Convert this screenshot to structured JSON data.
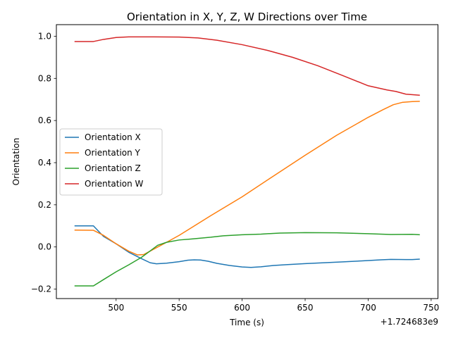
{
  "chart_data": {
    "type": "line",
    "title": "Orientation in X, Y, Z, W Directions over Time",
    "xlabel": "Time (s)",
    "ylabel": "Orientation",
    "x_offset_label": "+1.724683e9",
    "xlim": [
      452.6,
      755.4
    ],
    "ylim": [
      -0.245,
      1.055
    ],
    "xticks": [
      500,
      550,
      600,
      650,
      700,
      750
    ],
    "xtick_labels": [
      "500",
      "550",
      "600",
      "650",
      "700",
      "750"
    ],
    "yticks": [
      -0.2,
      0.0,
      0.2,
      0.4,
      0.6,
      0.8,
      1.0
    ],
    "ytick_labels": [
      "−0.2",
      "0.0",
      "0.2",
      "0.4",
      "0.6",
      "0.8",
      "1.0"
    ],
    "grid": false,
    "legend_position": "center-left",
    "series": [
      {
        "name": "Orientation X",
        "color": "#1f77b4",
        "points": [
          [
            467,
            0.1
          ],
          [
            482,
            0.1
          ],
          [
            490,
            0.05
          ],
          [
            500,
            0.015
          ],
          [
            510,
            -0.025
          ],
          [
            520,
            -0.055
          ],
          [
            527,
            -0.075
          ],
          [
            532,
            -0.08
          ],
          [
            540,
            -0.077
          ],
          [
            550,
            -0.07
          ],
          [
            557,
            -0.063
          ],
          [
            562,
            -0.061
          ],
          [
            567,
            -0.062
          ],
          [
            573,
            -0.068
          ],
          [
            580,
            -0.078
          ],
          [
            590,
            -0.088
          ],
          [
            600,
            -0.095
          ],
          [
            607,
            -0.097
          ],
          [
            615,
            -0.094
          ],
          [
            625,
            -0.088
          ],
          [
            635,
            -0.084
          ],
          [
            650,
            -0.079
          ],
          [
            665,
            -0.075
          ],
          [
            680,
            -0.071
          ],
          [
            695,
            -0.066
          ],
          [
            710,
            -0.061
          ],
          [
            718,
            -0.059
          ],
          [
            730,
            -0.06
          ],
          [
            735,
            -0.06
          ],
          [
            741,
            -0.058
          ]
        ]
      },
      {
        "name": "Orientation Y",
        "color": "#ff7f0e",
        "points": [
          [
            467,
            0.08
          ],
          [
            482,
            0.079
          ],
          [
            490,
            0.055
          ],
          [
            500,
            0.015
          ],
          [
            510,
            -0.02
          ],
          [
            517,
            -0.038
          ],
          [
            522,
            -0.036
          ],
          [
            530,
            -0.01
          ],
          [
            540,
            0.022
          ],
          [
            550,
            0.055
          ],
          [
            560,
            0.092
          ],
          [
            575,
            0.148
          ],
          [
            600,
            0.238
          ],
          [
            625,
            0.337
          ],
          [
            650,
            0.435
          ],
          [
            675,
            0.53
          ],
          [
            700,
            0.615
          ],
          [
            712,
            0.652
          ],
          [
            720,
            0.675
          ],
          [
            727,
            0.686
          ],
          [
            735,
            0.69
          ],
          [
            741,
            0.691
          ]
        ]
      },
      {
        "name": "Orientation Z",
        "color": "#2ca02c",
        "points": [
          [
            467,
            -0.185
          ],
          [
            482,
            -0.185
          ],
          [
            490,
            -0.155
          ],
          [
            500,
            -0.118
          ],
          [
            510,
            -0.085
          ],
          [
            520,
            -0.05
          ],
          [
            525,
            -0.028
          ],
          [
            533,
            0.008
          ],
          [
            540,
            0.022
          ],
          [
            550,
            0.033
          ],
          [
            560,
            0.038
          ],
          [
            575,
            0.046
          ],
          [
            585,
            0.053
          ],
          [
            600,
            0.058
          ],
          [
            615,
            0.061
          ],
          [
            630,
            0.066
          ],
          [
            650,
            0.068
          ],
          [
            675,
            0.067
          ],
          [
            700,
            0.063
          ],
          [
            718,
            0.059
          ],
          [
            735,
            0.06
          ],
          [
            741,
            0.058
          ]
        ]
      },
      {
        "name": "Orientation W",
        "color": "#d62728",
        "points": [
          [
            467,
            0.975
          ],
          [
            482,
            0.975
          ],
          [
            490,
            0.985
          ],
          [
            500,
            0.994
          ],
          [
            510,
            0.997
          ],
          [
            530,
            0.997
          ],
          [
            550,
            0.996
          ],
          [
            565,
            0.992
          ],
          [
            580,
            0.981
          ],
          [
            600,
            0.96
          ],
          [
            620,
            0.933
          ],
          [
            640,
            0.9
          ],
          [
            660,
            0.86
          ],
          [
            680,
            0.813
          ],
          [
            700,
            0.765
          ],
          [
            715,
            0.745
          ],
          [
            722,
            0.738
          ],
          [
            730,
            0.725
          ],
          [
            741,
            0.72
          ]
        ]
      }
    ]
  }
}
